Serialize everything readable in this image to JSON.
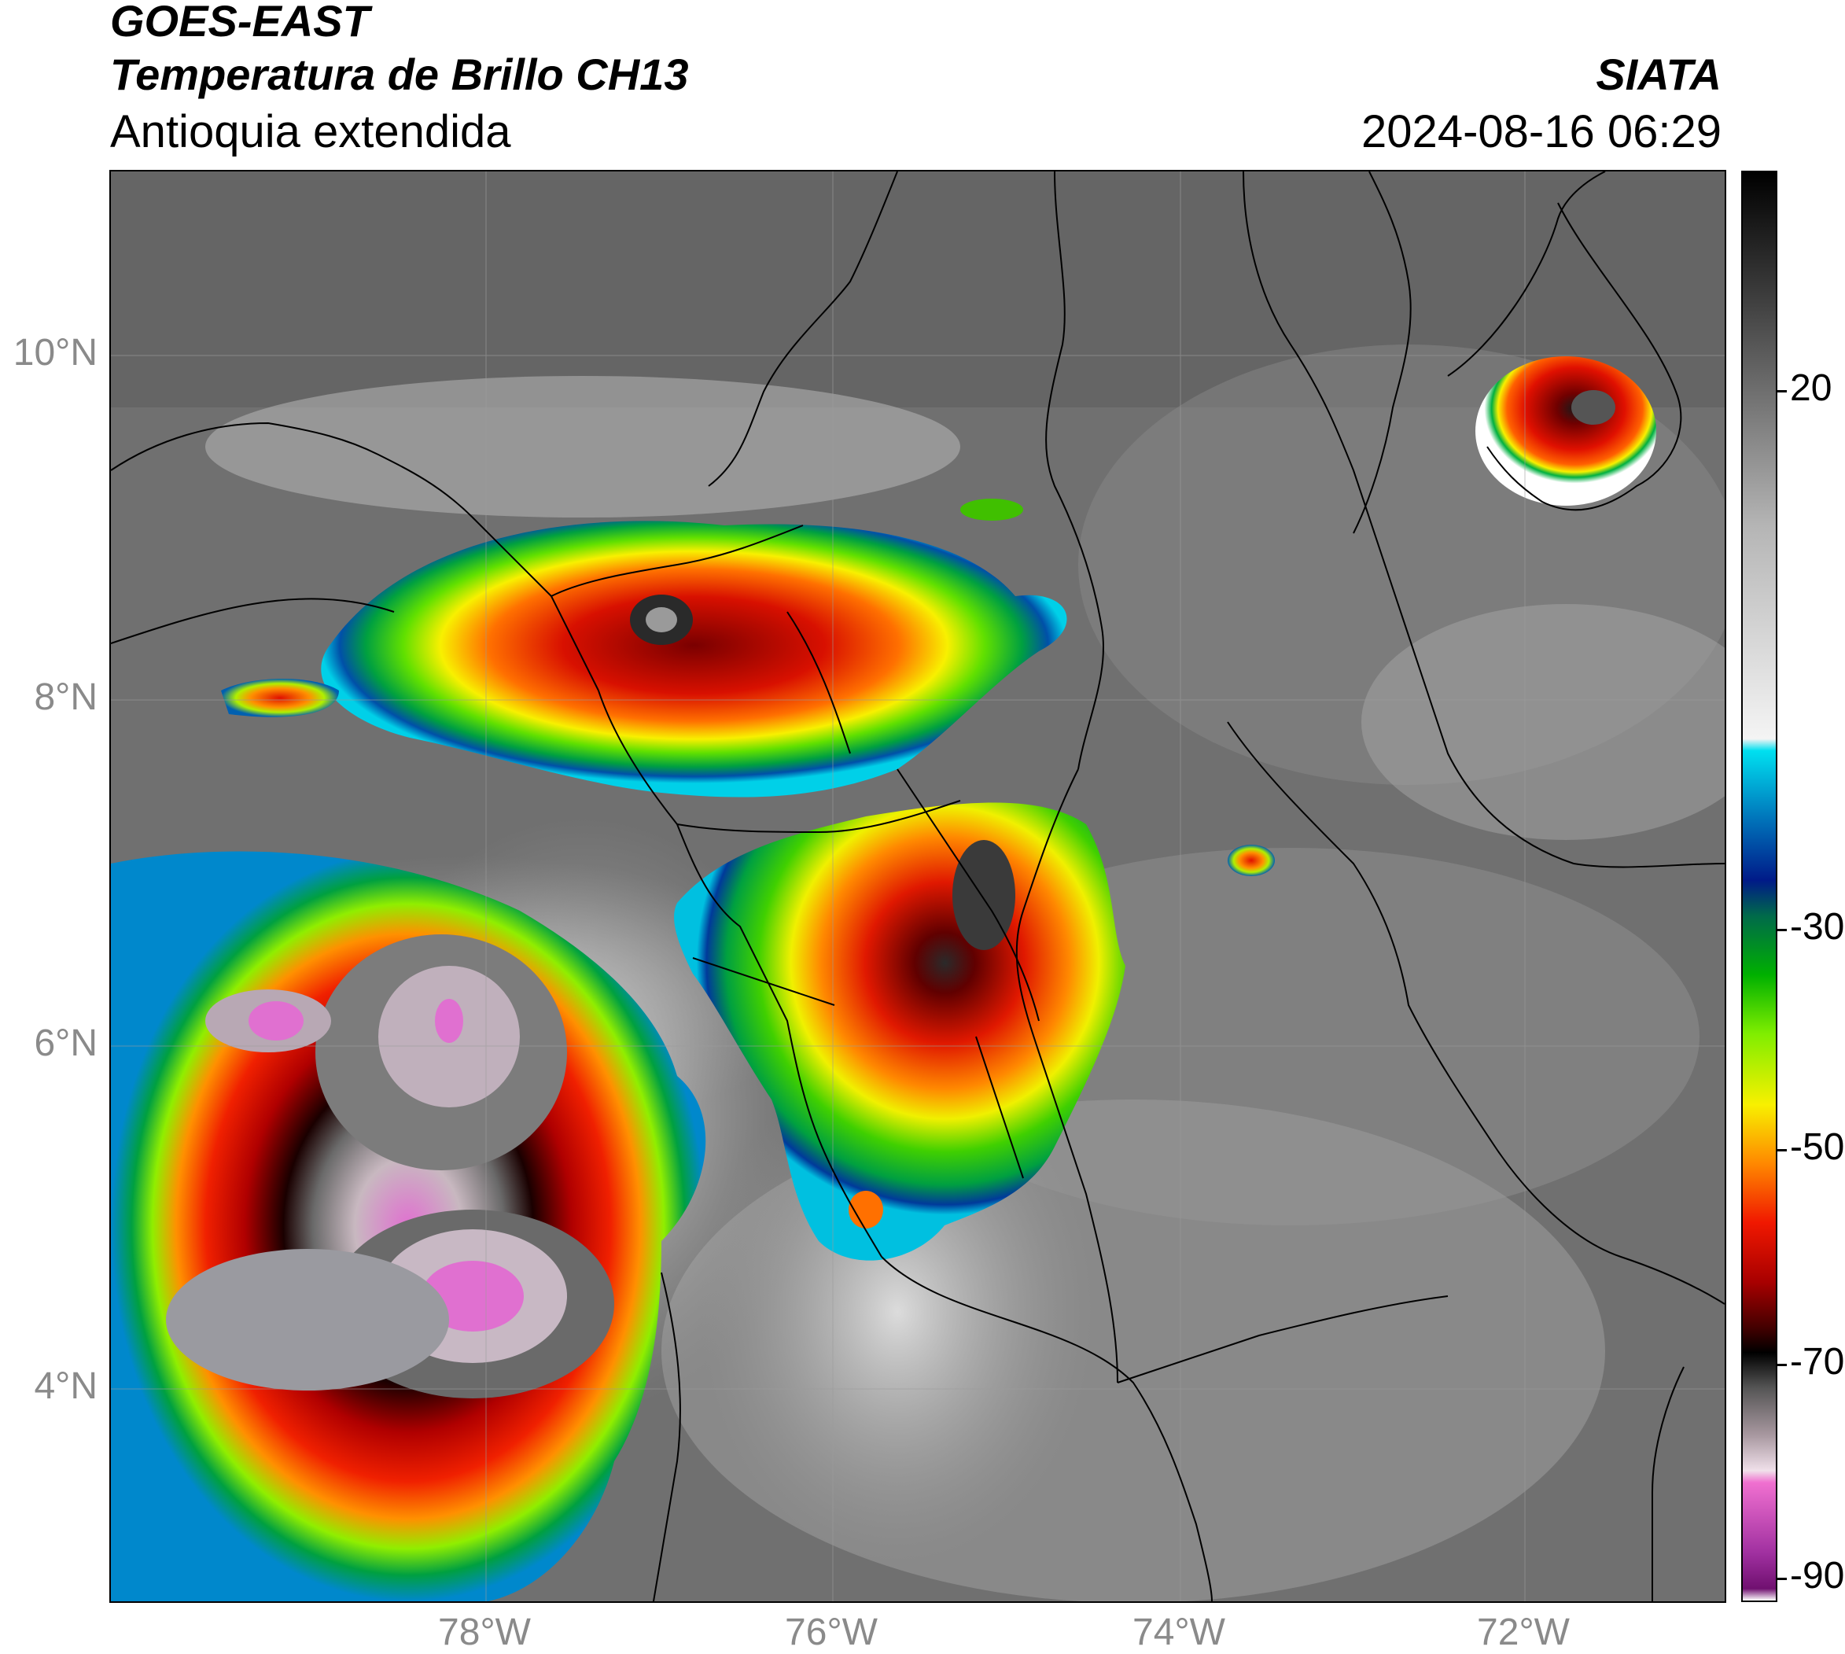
{
  "header": {
    "satellite": "GOES-EAST",
    "product": "Temperatura de Brillo CH13",
    "region": "Antioquia extendida",
    "organization": "SIATA",
    "timestamp": "2024-08-16 06:29"
  },
  "axes": {
    "lat_labels": [
      "10°N",
      "8°N",
      "6°N",
      "4°N"
    ],
    "lon_labels": [
      "78°W",
      "76°W",
      "74°W",
      "72°W"
    ]
  },
  "colorbar": {
    "labels": [
      "20",
      "-30",
      "-50",
      "-70",
      "-90"
    ],
    "gradient": [
      {
        "value": 30,
        "color": "#000000"
      },
      {
        "value": 20,
        "color": "#3a3a3a"
      },
      {
        "value": 0,
        "color": "#b5b5b5"
      },
      {
        "value": -18,
        "color": "#f4f4f4"
      },
      {
        "value": -19,
        "color": "#00e0f0"
      },
      {
        "value": -25,
        "color": "#0070b8"
      },
      {
        "value": -30,
        "color": "#001a88"
      },
      {
        "value": -33,
        "color": "#006a4a"
      },
      {
        "value": -38,
        "color": "#00b000"
      },
      {
        "value": -43,
        "color": "#80ee00"
      },
      {
        "value": -49,
        "color": "#f8f000"
      },
      {
        "value": -54,
        "color": "#ff8800"
      },
      {
        "value": -59,
        "color": "#f01800"
      },
      {
        "value": -64,
        "color": "#a80000"
      },
      {
        "value": -68,
        "color": "#400000"
      },
      {
        "value": -70,
        "color": "#000000"
      },
      {
        "value": -73,
        "color": "#555555"
      },
      {
        "value": -77,
        "color": "#a898a0"
      },
      {
        "value": -80,
        "color": "#f0e0ea"
      },
      {
        "value": -81,
        "color": "#f070d0"
      },
      {
        "value": -87,
        "color": "#a030a0"
      },
      {
        "value": -90,
        "color": "#701070"
      },
      {
        "value": -91,
        "color": "#ffffff"
      }
    ]
  }
}
